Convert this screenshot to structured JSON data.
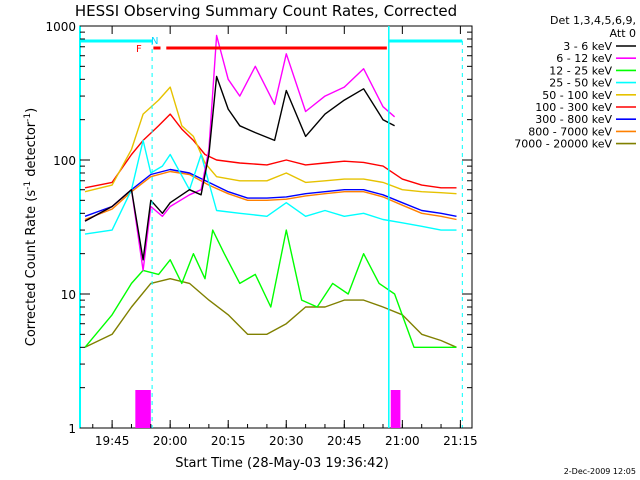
{
  "chart_data": {
    "type": "line",
    "title": "HESSI Observing Summary Count Rates, Corrected",
    "xlabel": "Start Time (28-May-03 19:36:42)",
    "ylabel_main": "Corrected Count Rate (s",
    "ylabel_sup1": "-1",
    "ylabel_mid": " detector",
    "ylabel_sup2": "-1",
    "ylabel_end": ")",
    "y_scale": "log",
    "ylim": [
      1,
      1000
    ],
    "xlim": [
      "19:36:42",
      "21:18:00"
    ],
    "x_ticks": [
      "19:45",
      "20:00",
      "20:15",
      "20:30",
      "20:45",
      "21:00",
      "21:15"
    ],
    "y_ticks": [
      "1",
      "10",
      "100",
      "1000"
    ],
    "legend_header_1": "Det 1,3,4,5,6,9,",
    "legend_header_2": "Att 0",
    "legend_placement": "right",
    "annotations": {
      "flag_f": "F",
      "flag_n": "N"
    },
    "footer_date": "2-Dec-2009 12:05",
    "series": [
      {
        "name": "3 - 6 keV",
        "color": "#000000",
        "x": [
          "19:38",
          "19:45",
          "19:50",
          "19:53",
          "19:55",
          "19:58",
          "20:00",
          "20:05",
          "20:08",
          "20:10",
          "20:12",
          "20:15",
          "20:18",
          "20:22",
          "20:27",
          "20:30",
          "20:35",
          "20:40",
          "20:45",
          "20:50",
          "20:55",
          "20:58"
        ],
        "y": [
          35,
          45,
          60,
          18,
          50,
          40,
          48,
          60,
          55,
          110,
          420,
          240,
          180,
          160,
          140,
          330,
          150,
          220,
          280,
          340,
          200,
          180
        ]
      },
      {
        "name": "6 - 12 keV",
        "color": "#ff00ff",
        "x": [
          "19:38",
          "19:45",
          "19:50",
          "19:53",
          "19:55",
          "19:58",
          "20:00",
          "20:05",
          "20:08",
          "20:10",
          "20:12",
          "20:15",
          "20:18",
          "20:22",
          "20:27",
          "20:30",
          "20:35",
          "20:40",
          "20:45",
          "20:50",
          "20:55",
          "20:58"
        ],
        "y": [
          35,
          45,
          60,
          15,
          45,
          38,
          45,
          55,
          60,
          120,
          850,
          400,
          300,
          500,
          260,
          620,
          230,
          300,
          350,
          480,
          250,
          210
        ]
      },
      {
        "name": "12 - 25 keV",
        "color": "#00ff00",
        "x": [
          "19:38",
          "19:45",
          "19:50",
          "19:53",
          "19:57",
          "20:00",
          "20:03",
          "20:06",
          "20:09",
          "20:11",
          "20:14",
          "20:18",
          "20:22",
          "20:26",
          "20:30",
          "20:34",
          "20:38",
          "20:42",
          "20:46",
          "20:50",
          "20:54",
          "20:58",
          "21:03",
          "21:10",
          "21:14"
        ],
        "y": [
          4,
          7,
          12,
          15,
          14,
          18,
          12,
          20,
          13,
          30,
          20,
          12,
          14,
          8,
          30,
          9,
          8,
          12,
          10,
          20,
          12,
          10,
          4,
          4,
          4
        ]
      },
      {
        "name": "25 - 50 keV",
        "color": "#00ffff",
        "x": [
          "19:38",
          "19:45",
          "19:50",
          "19:53",
          "19:55",
          "19:58",
          "20:00",
          "20:05",
          "20:08",
          "20:12",
          "20:18",
          "20:25",
          "20:30",
          "20:35",
          "20:40",
          "20:45",
          "20:50",
          "20:55",
          "21:00",
          "21:05",
          "21:10",
          "21:14"
        ],
        "y": [
          28,
          30,
          60,
          140,
          80,
          90,
          110,
          60,
          110,
          42,
          40,
          38,
          48,
          38,
          42,
          38,
          40,
          36,
          34,
          32,
          30,
          30
        ]
      },
      {
        "name": "50 - 100 keV",
        "color": "#e6c200",
        "x": [
          "19:38",
          "19:45",
          "19:50",
          "19:53",
          "19:57",
          "20:00",
          "20:03",
          "20:06",
          "20:09",
          "20:12",
          "20:18",
          "20:25",
          "20:30",
          "20:35",
          "20:40",
          "20:45",
          "20:50",
          "20:55",
          "21:00",
          "21:05",
          "21:10",
          "21:14"
        ],
        "y": [
          58,
          65,
          120,
          220,
          280,
          350,
          180,
          150,
          95,
          75,
          70,
          70,
          80,
          68,
          70,
          72,
          72,
          68,
          60,
          58,
          57,
          56
        ]
      },
      {
        "name": "100 - 300 keV",
        "color": "#ff0000",
        "x": [
          "19:38",
          "19:45",
          "19:50",
          "19:53",
          "19:57",
          "20:00",
          "20:03",
          "20:06",
          "20:09",
          "20:12",
          "20:18",
          "20:25",
          "20:30",
          "20:35",
          "20:40",
          "20:45",
          "20:50",
          "20:55",
          "21:00",
          "21:05",
          "21:10",
          "21:14"
        ],
        "y": [
          62,
          68,
          110,
          140,
          180,
          220,
          170,
          140,
          110,
          100,
          95,
          92,
          100,
          92,
          95,
          98,
          96,
          90,
          72,
          65,
          62,
          62
        ]
      },
      {
        "name": "300 - 800 keV",
        "color": "#0000ff",
        "x": [
          "19:38",
          "19:45",
          "19:50",
          "19:55",
          "20:00",
          "20:05",
          "20:10",
          "20:15",
          "20:20",
          "20:25",
          "20:30",
          "20:35",
          "20:40",
          "20:45",
          "20:50",
          "20:55",
          "21:00",
          "21:05",
          "21:10",
          "21:14"
        ],
        "y": [
          38,
          45,
          60,
          78,
          85,
          80,
          68,
          58,
          52,
          52,
          53,
          56,
          58,
          60,
          60,
          55,
          48,
          42,
          40,
          38
        ]
      },
      {
        "name": "800 - 7000 keV",
        "color": "#ff8000",
        "x": [
          "19:38",
          "19:45",
          "19:50",
          "19:55",
          "20:00",
          "20:05",
          "20:10",
          "20:15",
          "20:20",
          "20:25",
          "20:30",
          "20:35",
          "20:40",
          "20:45",
          "20:50",
          "20:55",
          "21:00",
          "21:05",
          "21:10",
          "21:14"
        ],
        "y": [
          36,
          43,
          58,
          75,
          82,
          78,
          65,
          56,
          50,
          50,
          51,
          54,
          56,
          58,
          58,
          53,
          46,
          40,
          38,
          36
        ]
      },
      {
        "name": "7000 - 20000 keV",
        "color": "#808000",
        "x": [
          "19:38",
          "19:45",
          "19:50",
          "19:55",
          "20:00",
          "20:05",
          "20:10",
          "20:15",
          "20:20",
          "20:25",
          "20:30",
          "20:35",
          "20:40",
          "20:45",
          "20:50",
          "20:55",
          "21:00",
          "21:05",
          "21:10",
          "21:14"
        ],
        "y": [
          4,
          5,
          8,
          12,
          13,
          12,
          9,
          7,
          5,
          5,
          6,
          8,
          8,
          9,
          9,
          8,
          7,
          5,
          4.5,
          4
        ]
      }
    ]
  }
}
